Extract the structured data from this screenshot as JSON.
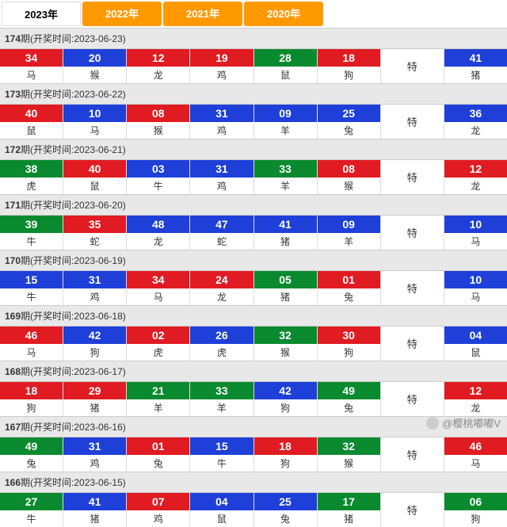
{
  "tabs": [
    {
      "label": "2023年",
      "active": true
    },
    {
      "label": "2022年",
      "active": false
    },
    {
      "label": "2021年",
      "active": false
    },
    {
      "label": "2020年",
      "active": false
    }
  ],
  "te_label": "特",
  "header_prefix": "期(开奖时间:",
  "header_suffix": ")",
  "colors": {
    "red": "#e01b22",
    "blue": "#1e3fd8",
    "green": "#0a8a2e"
  },
  "watermark": "@樱桃嘟嘟V",
  "periods": [
    {
      "id": "174",
      "date": "2023-06-23",
      "balls": [
        {
          "n": "34",
          "z": "马",
          "c": "red"
        },
        {
          "n": "20",
          "z": "猴",
          "c": "blue"
        },
        {
          "n": "12",
          "z": "龙",
          "c": "red"
        },
        {
          "n": "19",
          "z": "鸡",
          "c": "red"
        },
        {
          "n": "28",
          "z": "鼠",
          "c": "green"
        },
        {
          "n": "18",
          "z": "狗",
          "c": "red"
        }
      ],
      "special": {
        "n": "41",
        "z": "猪",
        "c": "blue"
      }
    },
    {
      "id": "173",
      "date": "2023-06-22",
      "balls": [
        {
          "n": "40",
          "z": "鼠",
          "c": "red"
        },
        {
          "n": "10",
          "z": "马",
          "c": "blue"
        },
        {
          "n": "08",
          "z": "猴",
          "c": "red"
        },
        {
          "n": "31",
          "z": "鸡",
          "c": "blue"
        },
        {
          "n": "09",
          "z": "羊",
          "c": "blue"
        },
        {
          "n": "25",
          "z": "兔",
          "c": "blue"
        }
      ],
      "special": {
        "n": "36",
        "z": "龙",
        "c": "blue"
      }
    },
    {
      "id": "172",
      "date": "2023-06-21",
      "balls": [
        {
          "n": "38",
          "z": "虎",
          "c": "green"
        },
        {
          "n": "40",
          "z": "鼠",
          "c": "red"
        },
        {
          "n": "03",
          "z": "牛",
          "c": "blue"
        },
        {
          "n": "31",
          "z": "鸡",
          "c": "blue"
        },
        {
          "n": "33",
          "z": "羊",
          "c": "green"
        },
        {
          "n": "08",
          "z": "猴",
          "c": "red"
        }
      ],
      "special": {
        "n": "12",
        "z": "龙",
        "c": "red"
      }
    },
    {
      "id": "171",
      "date": "2023-06-20",
      "balls": [
        {
          "n": "39",
          "z": "牛",
          "c": "green"
        },
        {
          "n": "35",
          "z": "蛇",
          "c": "red"
        },
        {
          "n": "48",
          "z": "龙",
          "c": "blue"
        },
        {
          "n": "47",
          "z": "蛇",
          "c": "blue"
        },
        {
          "n": "41",
          "z": "猪",
          "c": "blue"
        },
        {
          "n": "09",
          "z": "羊",
          "c": "blue"
        }
      ],
      "special": {
        "n": "10",
        "z": "马",
        "c": "blue"
      }
    },
    {
      "id": "170",
      "date": "2023-06-19",
      "balls": [
        {
          "n": "15",
          "z": "牛",
          "c": "blue"
        },
        {
          "n": "31",
          "z": "鸡",
          "c": "blue"
        },
        {
          "n": "34",
          "z": "马",
          "c": "red"
        },
        {
          "n": "24",
          "z": "龙",
          "c": "red"
        },
        {
          "n": "05",
          "z": "猪",
          "c": "green"
        },
        {
          "n": "01",
          "z": "兔",
          "c": "red"
        }
      ],
      "special": {
        "n": "10",
        "z": "马",
        "c": "blue"
      }
    },
    {
      "id": "169",
      "date": "2023-06-18",
      "balls": [
        {
          "n": "46",
          "z": "马",
          "c": "red"
        },
        {
          "n": "42",
          "z": "狗",
          "c": "blue"
        },
        {
          "n": "02",
          "z": "虎",
          "c": "red"
        },
        {
          "n": "26",
          "z": "虎",
          "c": "blue"
        },
        {
          "n": "32",
          "z": "猴",
          "c": "green"
        },
        {
          "n": "30",
          "z": "狗",
          "c": "red"
        }
      ],
      "special": {
        "n": "04",
        "z": "鼠",
        "c": "blue"
      }
    },
    {
      "id": "168",
      "date": "2023-06-17",
      "balls": [
        {
          "n": "18",
          "z": "狗",
          "c": "red"
        },
        {
          "n": "29",
          "z": "猪",
          "c": "red"
        },
        {
          "n": "21",
          "z": "羊",
          "c": "green"
        },
        {
          "n": "33",
          "z": "羊",
          "c": "green"
        },
        {
          "n": "42",
          "z": "狗",
          "c": "blue"
        },
        {
          "n": "49",
          "z": "兔",
          "c": "green"
        }
      ],
      "special": {
        "n": "12",
        "z": "龙",
        "c": "red"
      }
    },
    {
      "id": "167",
      "date": "2023-06-16",
      "balls": [
        {
          "n": "49",
          "z": "兔",
          "c": "green"
        },
        {
          "n": "31",
          "z": "鸡",
          "c": "blue"
        },
        {
          "n": "01",
          "z": "兔",
          "c": "red"
        },
        {
          "n": "15",
          "z": "牛",
          "c": "blue"
        },
        {
          "n": "18",
          "z": "狗",
          "c": "red"
        },
        {
          "n": "32",
          "z": "猴",
          "c": "green"
        }
      ],
      "special": {
        "n": "46",
        "z": "马",
        "c": "red"
      }
    },
    {
      "id": "166",
      "date": "2023-06-15",
      "balls": [
        {
          "n": "27",
          "z": "牛",
          "c": "green"
        },
        {
          "n": "41",
          "z": "猪",
          "c": "blue"
        },
        {
          "n": "07",
          "z": "鸡",
          "c": "red"
        },
        {
          "n": "04",
          "z": "鼠",
          "c": "blue"
        },
        {
          "n": "25",
          "z": "兔",
          "c": "blue"
        },
        {
          "n": "17",
          "z": "猪",
          "c": "green"
        }
      ],
      "special": {
        "n": "06",
        "z": "狗",
        "c": "green"
      }
    }
  ]
}
